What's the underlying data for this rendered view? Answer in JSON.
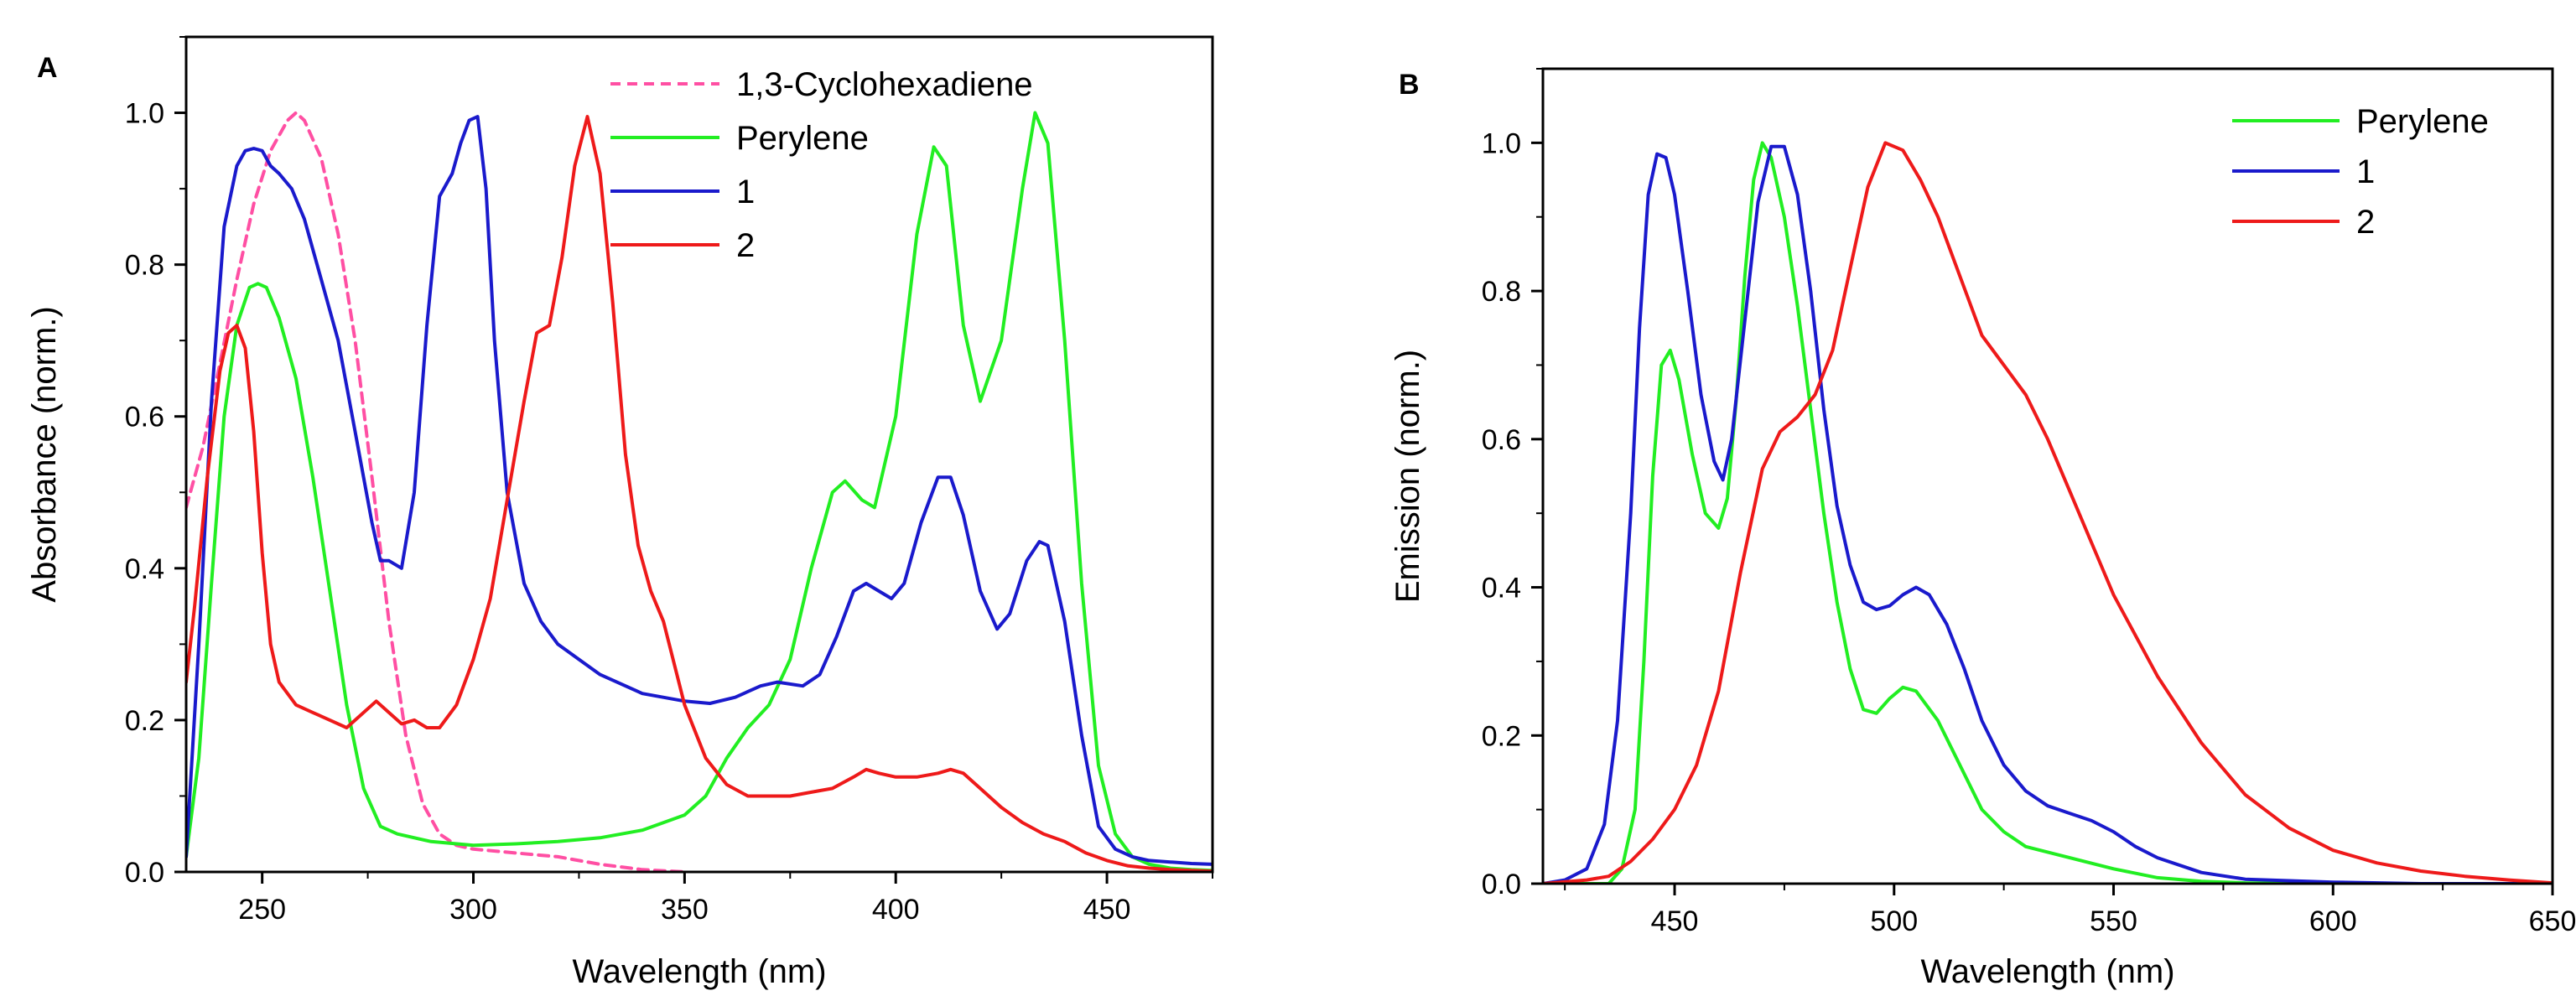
{
  "chart_data": [
    {
      "panel": "A",
      "type": "line",
      "xlabel": "Wavelength (nm)",
      "ylabel": "Absorbance (norm.)",
      "xlim": [
        232,
        475
      ],
      "ylim": [
        0.0,
        1.1
      ],
      "xticks": [
        250,
        300,
        350,
        400,
        450
      ],
      "yticks": [
        0.0,
        0.2,
        0.4,
        0.6,
        0.8,
        1.0
      ],
      "xtick_labels": [
        "250",
        "300",
        "350",
        "400",
        "450"
      ],
      "ytick_labels": [
        "0.0",
        "0.2",
        "0.4",
        "0.6",
        "0.8",
        "1.0"
      ],
      "legend_position": "top-right",
      "series": [
        {
          "name": "1,3-Cyclohexadiene",
          "color": "#ff4fa3",
          "dash": "dashed",
          "x": [
            232,
            236,
            240,
            244,
            248,
            252,
            256,
            258,
            260,
            264,
            268,
            272,
            276,
            280,
            284,
            288,
            292,
            296,
            300,
            310,
            320,
            330,
            340,
            350
          ],
          "y": [
            0.48,
            0.56,
            0.67,
            0.78,
            0.88,
            0.95,
            0.99,
            1.0,
            0.99,
            0.94,
            0.84,
            0.7,
            0.52,
            0.33,
            0.18,
            0.09,
            0.05,
            0.035,
            0.03,
            0.025,
            0.02,
            0.01,
            0.003,
            0.0
          ]
        },
        {
          "name": "Perylene",
          "color": "#22ee22",
          "dash": "solid",
          "x": [
            232,
            235,
            238,
            241,
            244,
            247,
            249,
            251,
            254,
            258,
            262,
            266,
            270,
            274,
            278,
            282,
            290,
            300,
            310,
            320,
            330,
            340,
            350,
            355,
            360,
            365,
            370,
            375,
            380,
            385,
            388,
            392,
            395,
            400,
            405,
            409,
            412,
            416,
            420,
            425,
            430,
            433,
            436,
            440,
            444,
            448,
            452,
            456,
            460,
            465,
            470,
            475
          ],
          "y": [
            0.02,
            0.15,
            0.38,
            0.6,
            0.72,
            0.77,
            0.775,
            0.77,
            0.73,
            0.65,
            0.52,
            0.37,
            0.22,
            0.11,
            0.06,
            0.05,
            0.04,
            0.035,
            0.037,
            0.04,
            0.045,
            0.055,
            0.075,
            0.1,
            0.15,
            0.19,
            0.22,
            0.28,
            0.4,
            0.5,
            0.515,
            0.49,
            0.48,
            0.6,
            0.84,
            0.955,
            0.93,
            0.72,
            0.62,
            0.7,
            0.9,
            1.0,
            0.96,
            0.7,
            0.38,
            0.14,
            0.05,
            0.02,
            0.01,
            0.005,
            0.003,
            0.002
          ]
        },
        {
          "name": "1",
          "color": "#1a1acc",
          "dash": "solid",
          "x": [
            232,
            235,
            238,
            241,
            244,
            246,
            248,
            250,
            252,
            254,
            257,
            260,
            264,
            268,
            272,
            276,
            278,
            280,
            283,
            286,
            289,
            292,
            295,
            297,
            299,
            301,
            303,
            305,
            308,
            312,
            316,
            320,
            325,
            330,
            340,
            350,
            356,
            362,
            368,
            372,
            378,
            382,
            386,
            390,
            393,
            396,
            399,
            402,
            406,
            410,
            413,
            416,
            420,
            424,
            427,
            431,
            434,
            436,
            440,
            444,
            448,
            452,
            456,
            460,
            465,
            470,
            475
          ],
          "y": [
            0.02,
            0.3,
            0.62,
            0.85,
            0.93,
            0.95,
            0.953,
            0.95,
            0.93,
            0.92,
            0.9,
            0.86,
            0.78,
            0.7,
            0.58,
            0.46,
            0.41,
            0.41,
            0.4,
            0.5,
            0.72,
            0.89,
            0.92,
            0.96,
            0.99,
            0.995,
            0.9,
            0.7,
            0.5,
            0.38,
            0.33,
            0.3,
            0.28,
            0.26,
            0.235,
            0.225,
            0.222,
            0.23,
            0.245,
            0.25,
            0.245,
            0.26,
            0.31,
            0.37,
            0.38,
            0.37,
            0.36,
            0.38,
            0.46,
            0.52,
            0.52,
            0.47,
            0.37,
            0.32,
            0.34,
            0.41,
            0.435,
            0.43,
            0.33,
            0.18,
            0.06,
            0.03,
            0.02,
            0.015,
            0.013,
            0.011,
            0.01
          ]
        },
        {
          "name": "2",
          "color": "#ee1a1a",
          "dash": "solid",
          "x": [
            232,
            234,
            237,
            240,
            242,
            244,
            246,
            248,
            250,
            252,
            254,
            258,
            262,
            266,
            270,
            274,
            277,
            280,
            283,
            286,
            289,
            292,
            296,
            300,
            304,
            308,
            312,
            315,
            318,
            321,
            324,
            327,
            330,
            333,
            336,
            339,
            342,
            345,
            350,
            355,
            360,
            365,
            370,
            375,
            380,
            385,
            390,
            393,
            396,
            400,
            405,
            410,
            413,
            416,
            420,
            425,
            430,
            435,
            440,
            445,
            450,
            455,
            460,
            465,
            470,
            475
          ],
          "y": [
            0.25,
            0.35,
            0.52,
            0.66,
            0.71,
            0.72,
            0.69,
            0.58,
            0.42,
            0.3,
            0.25,
            0.22,
            0.21,
            0.2,
            0.19,
            0.21,
            0.225,
            0.21,
            0.195,
            0.2,
            0.19,
            0.19,
            0.22,
            0.28,
            0.36,
            0.49,
            0.62,
            0.71,
            0.72,
            0.81,
            0.93,
            0.995,
            0.92,
            0.75,
            0.55,
            0.43,
            0.37,
            0.33,
            0.22,
            0.15,
            0.115,
            0.1,
            0.1,
            0.1,
            0.105,
            0.11,
            0.125,
            0.135,
            0.13,
            0.125,
            0.125,
            0.13,
            0.135,
            0.13,
            0.11,
            0.085,
            0.065,
            0.05,
            0.04,
            0.025,
            0.015,
            0.008,
            0.005,
            0.003,
            0.002,
            0.001
          ]
        }
      ]
    },
    {
      "panel": "B",
      "type": "line",
      "xlabel": "Wavelength (nm)",
      "ylabel": "Emission (norm.)",
      "xlim": [
        420,
        650
      ],
      "ylim": [
        0.0,
        1.1
      ],
      "xticks": [
        450,
        500,
        550,
        600,
        650
      ],
      "yticks": [
        0.0,
        0.2,
        0.4,
        0.6,
        0.8,
        1.0
      ],
      "xtick_labels": [
        "450",
        "500",
        "550",
        "600",
        "650"
      ],
      "ytick_labels": [
        "0.0",
        "0.2",
        "0.4",
        "0.6",
        "0.8",
        "1.0"
      ],
      "legend_position": "top-right",
      "series": [
        {
          "name": "Perylene",
          "color": "#22ee22",
          "dash": "solid",
          "x": [
            420,
            435,
            438,
            441,
            443,
            445,
            447,
            449,
            451,
            454,
            457,
            460,
            462,
            464,
            466,
            468,
            470,
            472,
            475,
            478,
            481,
            484,
            487,
            490,
            493,
            496,
            499,
            502,
            505,
            510,
            515,
            520,
            525,
            530,
            540,
            550,
            560,
            570,
            580,
            600,
            650
          ],
          "y": [
            0.0,
            0.0,
            0.02,
            0.1,
            0.3,
            0.55,
            0.7,
            0.72,
            0.68,
            0.58,
            0.5,
            0.48,
            0.52,
            0.65,
            0.82,
            0.95,
            1.0,
            0.98,
            0.9,
            0.78,
            0.64,
            0.5,
            0.38,
            0.29,
            0.235,
            0.23,
            0.25,
            0.265,
            0.26,
            0.22,
            0.16,
            0.1,
            0.07,
            0.05,
            0.035,
            0.02,
            0.008,
            0.003,
            0.001,
            0.0,
            0.0
          ]
        },
        {
          "name": "1",
          "color": "#1a1acc",
          "dash": "solid",
          "x": [
            420,
            425,
            430,
            434,
            437,
            440,
            442,
            444,
            446,
            448,
            450,
            453,
            456,
            459,
            461,
            463,
            466,
            469,
            472,
            475,
            478,
            481,
            484,
            487,
            490,
            493,
            496,
            499,
            502,
            505,
            508,
            512,
            516,
            520,
            525,
            530,
            535,
            540,
            545,
            550,
            555,
            560,
            570,
            580,
            600,
            620,
            650
          ],
          "y": [
            0.0,
            0.005,
            0.02,
            0.08,
            0.22,
            0.5,
            0.75,
            0.93,
            0.985,
            0.98,
            0.93,
            0.8,
            0.66,
            0.57,
            0.545,
            0.6,
            0.76,
            0.92,
            0.995,
            0.995,
            0.93,
            0.8,
            0.64,
            0.51,
            0.43,
            0.38,
            0.37,
            0.375,
            0.39,
            0.4,
            0.39,
            0.35,
            0.29,
            0.22,
            0.16,
            0.125,
            0.105,
            0.095,
            0.085,
            0.07,
            0.05,
            0.035,
            0.015,
            0.006,
            0.002,
            0.0,
            0.0
          ]
        },
        {
          "name": "2",
          "color": "#ee1a1a",
          "dash": "solid",
          "x": [
            420,
            430,
            435,
            440,
            445,
            450,
            455,
            460,
            465,
            470,
            474,
            478,
            482,
            486,
            490,
            494,
            498,
            502,
            506,
            510,
            515,
            520,
            525,
            530,
            535,
            540,
            545,
            550,
            560,
            570,
            580,
            590,
            600,
            610,
            620,
            630,
            640,
            650
          ],
          "y": [
            0.0,
            0.005,
            0.01,
            0.03,
            0.06,
            0.1,
            0.16,
            0.26,
            0.42,
            0.56,
            0.61,
            0.63,
            0.66,
            0.72,
            0.83,
            0.94,
            1.0,
            0.99,
            0.95,
            0.9,
            0.82,
            0.74,
            0.7,
            0.66,
            0.6,
            0.53,
            0.46,
            0.39,
            0.28,
            0.19,
            0.12,
            0.075,
            0.045,
            0.028,
            0.017,
            0.01,
            0.005,
            0.001
          ]
        }
      ]
    }
  ]
}
